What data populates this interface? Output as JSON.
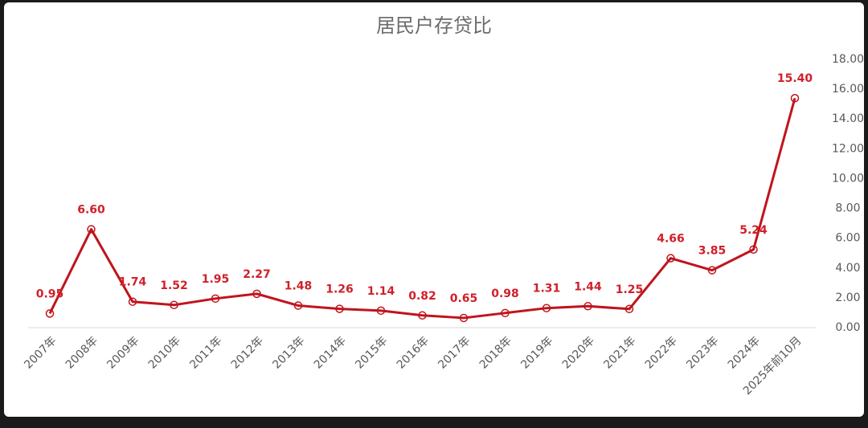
{
  "chart_data": {
    "type": "line",
    "title": "居民户存贷比",
    "categories": [
      "2007年",
      "2008年",
      "2009年",
      "2010年",
      "2011年",
      "2012年",
      "2013年",
      "2014年",
      "2015年",
      "2016年",
      "2017年",
      "2018年",
      "2019年",
      "2020年",
      "2021年",
      "2022年",
      "2023年",
      "2024年",
      "2025年前10月"
    ],
    "series": [
      {
        "name": "居民户存贷比",
        "color": "#c0141c",
        "values": [
          0.95,
          6.6,
          1.74,
          1.52,
          1.95,
          2.27,
          1.48,
          1.26,
          1.14,
          0.82,
          0.65,
          0.98,
          1.31,
          1.44,
          1.25,
          4.66,
          3.85,
          5.24,
          15.4
        ],
        "value_labels": [
          "0.95",
          "6.60",
          "1.74",
          "1.52",
          "1.95",
          "2.27",
          "1.48",
          "1.26",
          "1.14",
          "0.82",
          "0.65",
          "0.98",
          "1.31",
          "1.44",
          "1.25",
          "4.66",
          "3.85",
          "5.24",
          "15.40"
        ]
      }
    ],
    "ylim": [
      0,
      18
    ],
    "yticks": [
      {
        "value": 0,
        "label": "0.00"
      },
      {
        "value": 2,
        "label": "2.00"
      },
      {
        "value": 4,
        "label": "4.00"
      },
      {
        "value": 6,
        "label": "6.00"
      },
      {
        "value": 8,
        "label": "8.00"
      },
      {
        "value": 10,
        "label": "10.00"
      },
      {
        "value": 12,
        "label": "12.00"
      },
      {
        "value": 14,
        "label": "14.00"
      },
      {
        "value": 16,
        "label": "16.00"
      },
      {
        "value": 18,
        "label": "18.00"
      }
    ],
    "y_axis_side": "right"
  }
}
